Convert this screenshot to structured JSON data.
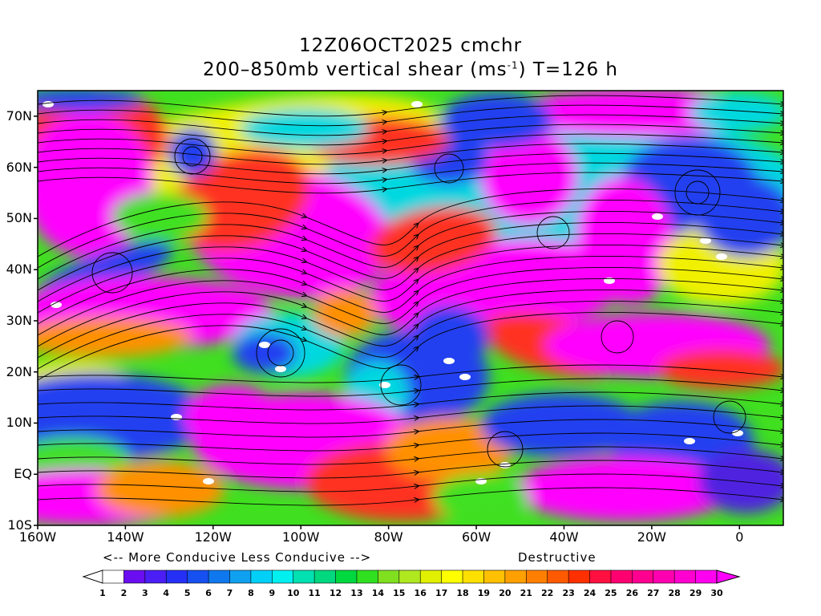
{
  "title_line1": "12Z06OCT2025 cmchr",
  "title_line2_pre": "200–850mb vertical shear (ms",
  "title_line2_sup": "-1",
  "title_line2_post": ") T=126 h",
  "lat_labels": [
    "70N",
    "60N",
    "50N",
    "40N",
    "30N",
    "20N",
    "10N",
    "EQ",
    "10S"
  ],
  "lon_labels": [
    "160W",
    "140W",
    "120W",
    "100W",
    "80W",
    "60W",
    "40W",
    "20W",
    "0"
  ],
  "legend_left": "<-- More Conducive  Less Conducive -->",
  "legend_right": "Destructive",
  "colorbar": {
    "labels": [
      "1",
      "2",
      "3",
      "4",
      "5",
      "6",
      "7",
      "8",
      "9",
      "10",
      "11",
      "12",
      "13",
      "14",
      "15",
      "16",
      "17",
      "18",
      "19",
      "20",
      "21",
      "22",
      "23",
      "24",
      "25",
      "26",
      "27",
      "28",
      "29",
      "30"
    ],
    "colors": [
      "#ffffff",
      "#6a0df0",
      "#4a1ef5",
      "#2430f5",
      "#1650f0",
      "#1078ee",
      "#10a0f0",
      "#00d0f8",
      "#00f0f0",
      "#00e0b0",
      "#00d880",
      "#00d840",
      "#30e020",
      "#80e020",
      "#b0e820",
      "#e0f000",
      "#ffff00",
      "#ffe000",
      "#ffc000",
      "#ffa000",
      "#ff8000",
      "#ff5a00",
      "#ff3000",
      "#ff1040",
      "#ff0070",
      "#ff0090",
      "#ff00b0",
      "#ff00d0",
      "#ff00f0"
    ],
    "under_color": "#ffffff",
    "over_color": "#ff00ff"
  },
  "colors": {
    "magenta": "#ff00ff",
    "red": "#ff3020",
    "orange": "#ff9000",
    "yellow": "#f0f000",
    "green": "#40e020",
    "cyan": "#00d8e0",
    "blue": "#2040f0",
    "purple": "#5020e0"
  }
}
